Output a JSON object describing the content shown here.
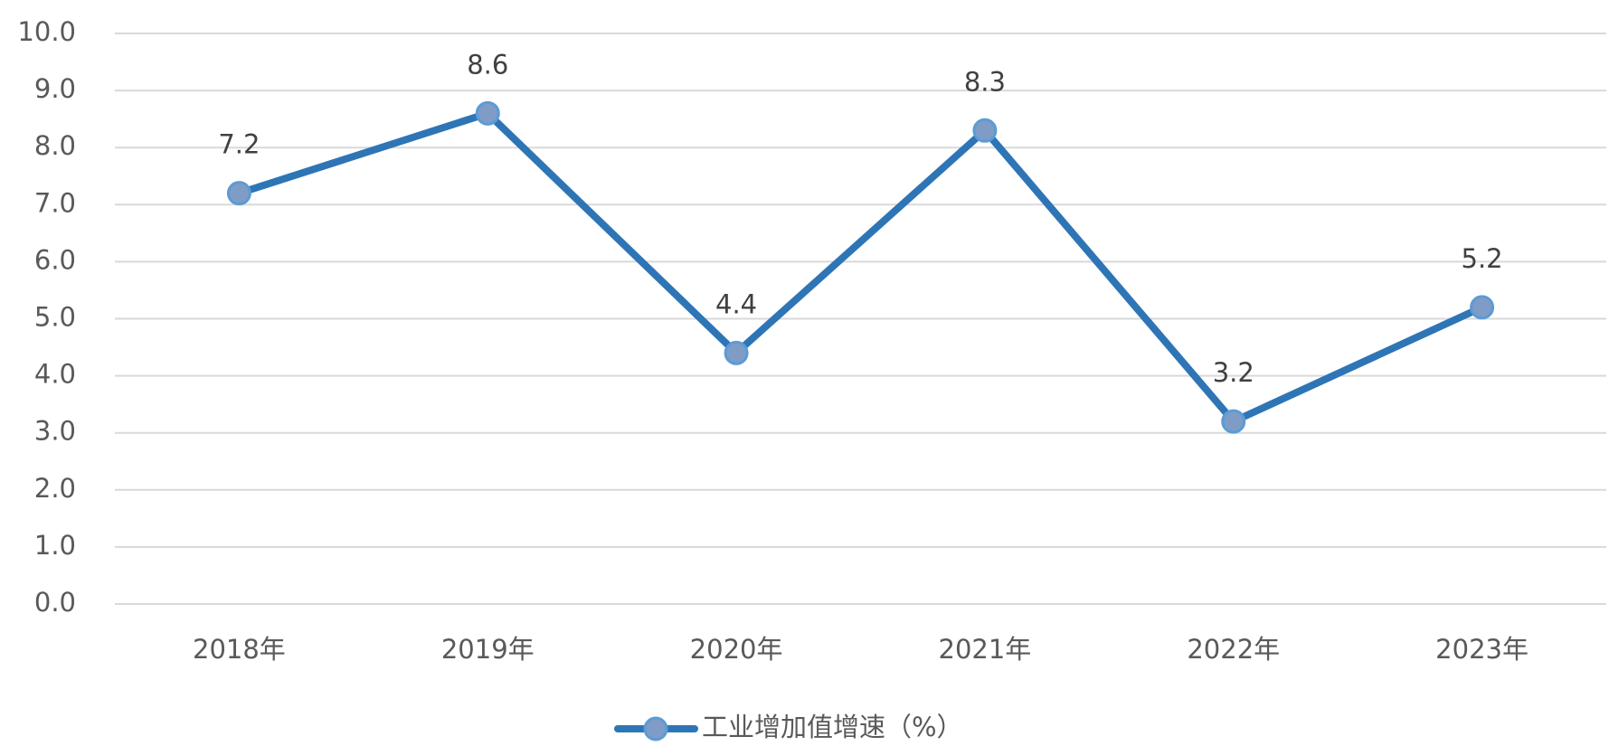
{
  "chart_data": {
    "type": "line",
    "categories": [
      "2018年",
      "2019年",
      "2020年",
      "2021年",
      "2022年",
      "2023年"
    ],
    "series": [
      {
        "name": "工业增加值增速（%）",
        "color": "#2e75b6",
        "marker_color": "#7f9cc6",
        "values": [
          7.2,
          8.6,
          4.4,
          8.3,
          3.2,
          5.2
        ]
      }
    ],
    "ylim": [
      0,
      10
    ],
    "yticks": [
      {
        "value": 0,
        "label": "0.0"
      },
      {
        "value": 1,
        "label": "1.0"
      },
      {
        "value": 2,
        "label": "2.0"
      },
      {
        "value": 3,
        "label": "3.0"
      },
      {
        "value": 4,
        "label": "4.0"
      },
      {
        "value": 5,
        "label": "5.0"
      },
      {
        "value": 6,
        "label": "6.0"
      },
      {
        "value": 7,
        "label": "7.0"
      },
      {
        "value": 8,
        "label": "8.0"
      },
      {
        "value": 9,
        "label": "9.0"
      },
      {
        "value": 10,
        "label": "10.0"
      }
    ],
    "grid": true,
    "legend": "bottom"
  }
}
